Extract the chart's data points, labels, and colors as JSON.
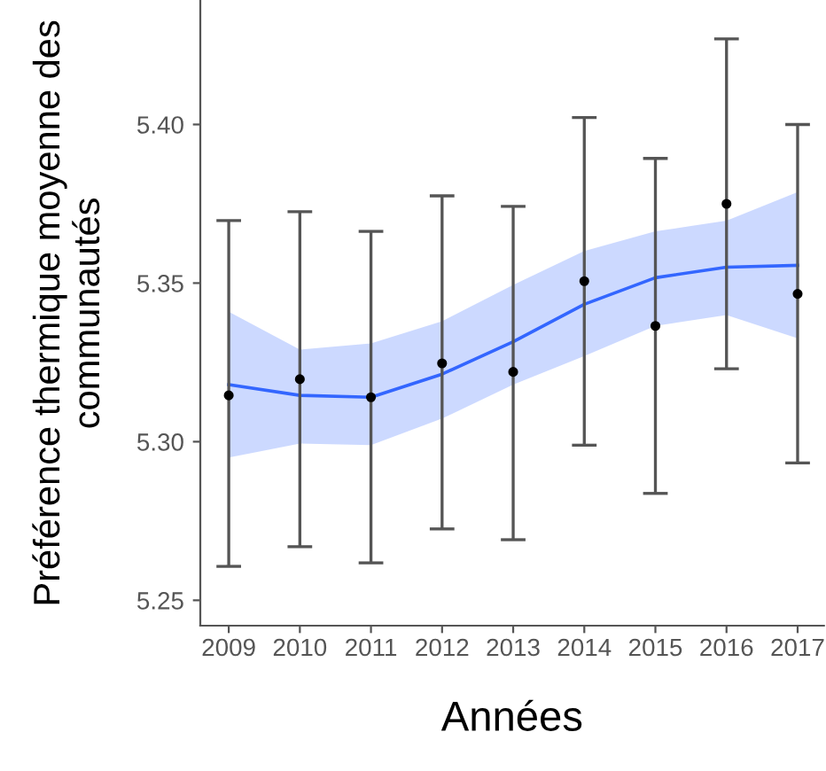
{
  "chart_data": {
    "type": "scatter",
    "xlabel": "Années",
    "ylabel": "Préférence thermique moyenne des\ncommunautés",
    "x": [
      2009,
      2010,
      2011,
      2012,
      2013,
      2014,
      2015,
      2016,
      2017
    ],
    "xlim": [
      2008.6,
      2017.37
    ],
    "xticks": [
      2009,
      2010,
      2011,
      2012,
      2013,
      2014,
      2015,
      2016,
      2017
    ],
    "ylim": [
      5.242,
      5.439
    ],
    "yticks": [
      5.25,
      {
        "value": 5.3,
        "label": "5.30"
      },
      5.35,
      {
        "value": 5.4,
        "label": "5.40"
      }
    ],
    "grid": false,
    "legend": false,
    "series": [
      {
        "type": "line",
        "color": "#3366ff",
        "x": [
          2009,
          2010,
          2011,
          2012,
          2013,
          2014,
          2015,
          2016,
          2017
        ],
        "values": [
          5.318,
          5.3146,
          5.314,
          5.3213,
          5.3315,
          5.3433,
          5.3517,
          5.355,
          5.3556
        ],
        "lower": [
          5.295,
          5.2994,
          5.2989,
          5.3073,
          5.318,
          5.327,
          5.3365,
          5.3399,
          5.3326
        ],
        "upper": [
          5.341,
          5.329,
          5.331,
          5.338,
          5.3494,
          5.3601,
          5.3663,
          5.3697,
          5.3787
        ]
      },
      {
        "color": "#000000",
        "marker": "circle",
        "values": [
          5.3146,
          5.3197,
          5.314,
          5.3247,
          5.322,
          5.3506,
          5.3365,
          5.375,
          5.3466
        ],
        "errors": [
          [
            5.2607,
            5.3697
          ],
          [
            5.2669,
            5.3725
          ],
          [
            5.2618,
            5.3663
          ],
          [
            5.2725,
            5.3775
          ],
          [
            5.2691,
            5.3742
          ],
          [
            5.2989,
            5.4022
          ],
          [
            5.2837,
            5.3893
          ],
          [
            5.323,
            5.427
          ],
          [
            5.2933,
            5.4
          ]
        ]
      }
    ]
  }
}
